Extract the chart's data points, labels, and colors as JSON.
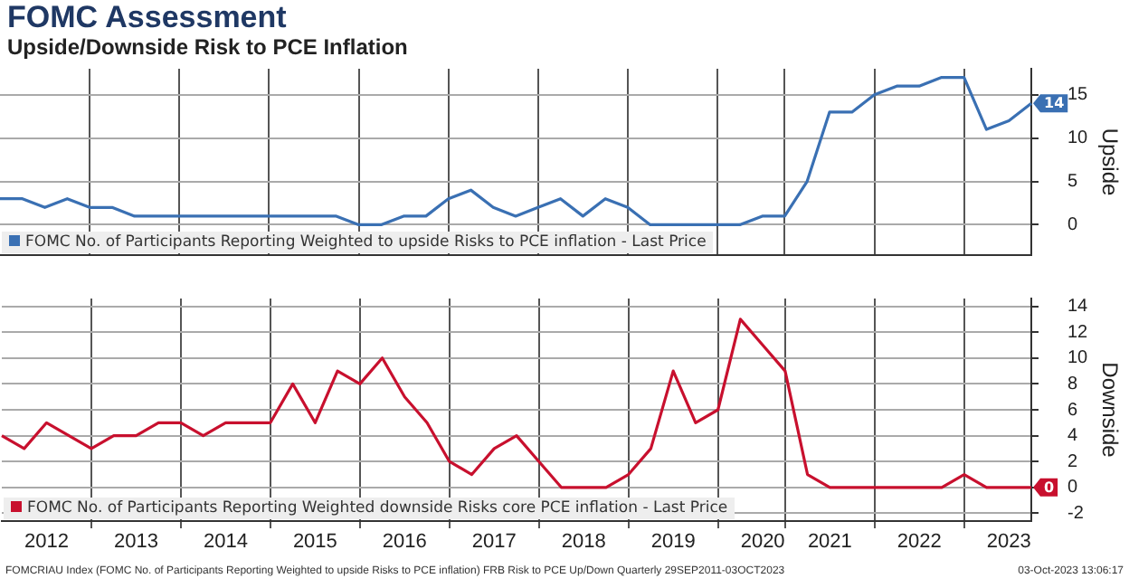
{
  "chart_data": [
    {
      "type": "line",
      "title": "FOMC Assessment",
      "subtitle": "Upside/Downside Risk to PCE Inflation",
      "ylabel": "Upside",
      "categories": [
        null,
        null,
        "2012",
        null,
        null,
        null,
        "2013",
        null,
        null,
        null,
        "2014",
        null,
        null,
        null,
        "2015",
        null,
        null,
        null,
        "2016",
        null,
        null,
        null,
        "2017",
        null,
        null,
        null,
        "2018",
        null,
        null,
        null,
        "2019",
        null,
        null,
        null,
        "2020",
        null,
        null,
        "2021",
        null,
        null,
        null,
        "2022",
        null,
        null,
        null,
        "2023",
        null
      ],
      "series": [
        {
          "name": "FOMC No. of Participants Reporting Weighted to upside Risks to PCE inflation - Last Price",
          "color": "#3a70b3",
          "values": [
            3,
            3,
            2,
            3,
            2,
            2,
            1,
            1,
            1,
            1,
            1,
            1,
            1,
            1,
            1,
            1,
            0,
            0,
            1,
            1,
            3,
            4,
            2,
            1,
            2,
            3,
            1,
            3,
            2,
            0,
            0,
            0,
            0,
            0,
            1,
            1,
            5,
            13,
            13,
            15,
            16,
            16,
            17,
            17,
            11,
            12,
            14
          ],
          "value_labels": [
            null,
            null,
            null,
            null,
            null,
            null,
            null,
            null,
            null,
            null,
            null,
            null,
            null,
            null,
            null,
            null,
            null,
            null,
            null,
            null,
            null,
            null,
            null,
            null,
            null,
            null,
            null,
            null,
            null,
            null,
            null,
            null,
            null,
            null,
            null,
            null,
            null,
            null,
            null,
            null,
            null,
            null,
            null,
            null,
            null,
            null,
            "14"
          ]
        }
      ],
      "ylim": [
        -3.5,
        18
      ],
      "yticks": [
        0,
        5,
        10,
        15
      ],
      "grid": true,
      "legend": "bottom left",
      "tick_labels": "y"
    },
    {
      "type": "line",
      "ylabel": "Downside",
      "categories": [
        null,
        null,
        "2012",
        null,
        null,
        null,
        "2013",
        null,
        null,
        null,
        "2014",
        null,
        null,
        null,
        "2015",
        null,
        null,
        null,
        "2016",
        null,
        null,
        null,
        "2017",
        null,
        null,
        null,
        "2018",
        null,
        null,
        null,
        "2019",
        null,
        null,
        null,
        "2020",
        null,
        null,
        "2021",
        null,
        null,
        null,
        "2022",
        null,
        null,
        null,
        "2023",
        null
      ],
      "series": [
        {
          "name": "FOMC No. of Participants Reporting Weighted downside Risks core PCE inflation - Last Price",
          "color": "#c8102e",
          "values": [
            4,
            3,
            5,
            4,
            3,
            4,
            4,
            5,
            5,
            4,
            5,
            5,
            5,
            8,
            5,
            9,
            8,
            10,
            7,
            5,
            2,
            1,
            3,
            4,
            2,
            0,
            0,
            0,
            1,
            3,
            9,
            5,
            6,
            13,
            11,
            9,
            1,
            0,
            0,
            0,
            0,
            0,
            0,
            1,
            0,
            0,
            0
          ],
          "value_labels": [
            null,
            null,
            null,
            null,
            null,
            null,
            null,
            null,
            null,
            null,
            null,
            null,
            null,
            null,
            null,
            null,
            null,
            null,
            null,
            null,
            null,
            null,
            null,
            null,
            null,
            null,
            null,
            null,
            null,
            null,
            null,
            null,
            null,
            null,
            null,
            null,
            null,
            null,
            null,
            null,
            null,
            null,
            null,
            null,
            null,
            null,
            "0"
          ]
        }
      ],
      "ylim": [
        -2.6,
        14.6
      ],
      "yticks": [
        -2,
        0,
        2,
        4,
        6,
        8,
        10,
        12,
        14
      ],
      "grid": true,
      "legend": "bottom left",
      "annotations": [
        "FOMCRIAU Index (FOMC No. of Participants Reporting Weighted to upside Risks to PCE inflation) FRB Risk to PCE Up/Down  Quarterly 29SEP2011-03OCT2023",
        "03-Oct-2023 13:06:17"
      ]
    }
  ]
}
